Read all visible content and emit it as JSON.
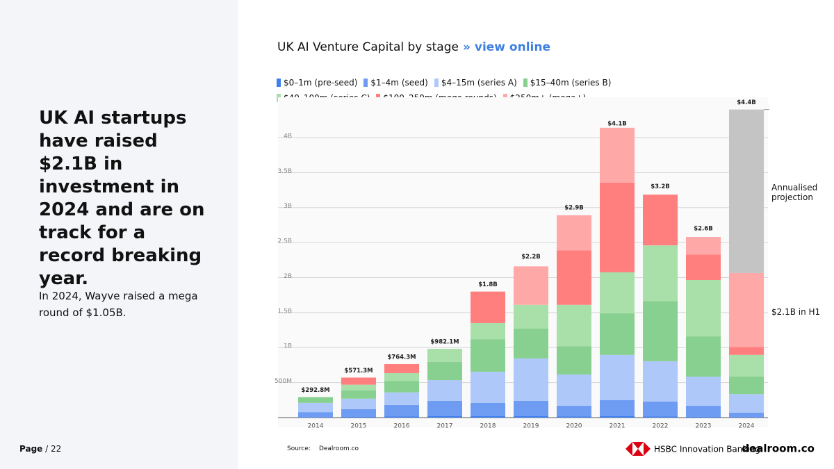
{
  "headline": "UK AI startups have raised $2.1B in investment in 2024 and are on track for a record breaking year.",
  "body": "In 2024, Wayve raised a mega round of $1.05B.",
  "page_label": "Page",
  "page_total": "/ 22",
  "source_label": "Source:",
  "source": "Dealroom.co",
  "logos": [
    "HSBC Innovation Banking",
    "dealroom.co"
  ],
  "chart_data": {
    "type": "bar",
    "stacked": true,
    "title": "UK AI Venture Capital by stage",
    "link": "» view online",
    "categories": [
      "2014",
      "2015",
      "2016",
      "2017",
      "2018",
      "2019",
      "2020",
      "2021",
      "2022",
      "2023",
      "2024"
    ],
    "series": [
      {
        "name": "$0–1m (pre-seed)",
        "color": "#3f7ff0",
        "values": [
          8,
          10,
          15,
          20,
          20,
          20,
          15,
          20,
          15,
          10,
          5
        ]
      },
      {
        "name": "$1–4m (seed)",
        "color": "#6d9cf2",
        "values": [
          70,
          110,
          165,
          220,
          190,
          220,
          155,
          230,
          215,
          160,
          65
        ]
      },
      {
        "name": "$4–15m (series A)",
        "color": "#aec8fa",
        "values": [
          132,
          150,
          180,
          295,
          445,
          605,
          445,
          645,
          575,
          415,
          265
        ]
      },
      {
        "name": "$15–40m (series B)",
        "color": "#88d08f",
        "values": [
          82.8,
          120,
          165,
          260,
          465,
          425,
          405,
          595,
          860,
          575,
          250
        ]
      },
      {
        "name": "$40–100m (series C)",
        "color": "#a9dfa9",
        "values": [
          0,
          80,
          110,
          187.1,
          230,
          340,
          590,
          585,
          795,
          805,
          310
        ]
      },
      {
        "name": "$100–250m (mega rounds)",
        "color": "#ff7f7f",
        "values": [
          0,
          101.3,
          129.3,
          0,
          450,
          0,
          780,
          1280,
          725,
          365,
          115
        ]
      },
      {
        "name": "$250m+ (mega+)",
        "color": "#ffa8a8",
        "values": [
          0,
          0,
          0,
          0,
          0,
          550,
          500,
          785,
          0,
          250,
          1055
        ]
      }
    ],
    "projection": {
      "name": "Annualised projection",
      "color": "#c4c4c4",
      "values": [
        null,
        null,
        null,
        null,
        null,
        null,
        null,
        null,
        null,
        null,
        2335
      ]
    },
    "annotations": [
      "$2.1B in H1"
    ],
    "totals": {
      "values": [
        292.8,
        571.3,
        764.3,
        982.1,
        1800,
        2200,
        2900,
        4100,
        3200,
        2600,
        4400
      ],
      "value_labels": [
        "$292.8M",
        "$571.3M",
        "$764.3M",
        "$982.1M",
        "$1.8B",
        "$2.2B",
        "$2.9B",
        "$4.1B",
        "$3.2B",
        "$2.6B",
        "$4.4B"
      ]
    },
    "ylim": [
      0,
      4575
    ],
    "yticks": [
      {
        "value": 500,
        "label": "500M"
      },
      {
        "value": 1000,
        "label": "1B"
      },
      {
        "value": 1500,
        "label": "1.5B"
      },
      {
        "value": 2000,
        "label": "2B"
      },
      {
        "value": 2500,
        "label": "2.5B"
      },
      {
        "value": 3000,
        "label": "3B"
      },
      {
        "value": 3500,
        "label": "3.5B"
      },
      {
        "value": 4000,
        "label": "4B"
      }
    ],
    "grid": true
  }
}
